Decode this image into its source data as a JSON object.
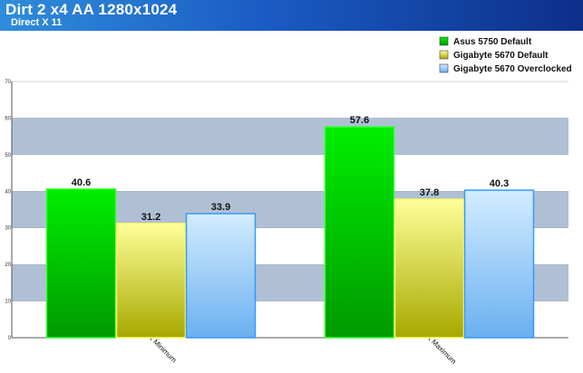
{
  "header": {
    "title": "Dirt 2 x4 AA 1280x1024",
    "subtitle": "Direct X 11"
  },
  "chart_data": {
    "type": "bar",
    "title": "Dirt 2 x4 AA 1280x1024",
    "subtitle": "Direct X 11",
    "xlabel": "",
    "ylabel": "",
    "categories": [
      "Minimum",
      "Maximum"
    ],
    "ylim": [
      0,
      70
    ],
    "yticks": [
      0,
      10,
      20,
      30,
      40,
      50,
      60,
      70
    ],
    "grid": true,
    "legend_position": "top-right",
    "series": [
      {
        "name": "Asus 5750 Default",
        "values": [
          40.6,
          57.6
        ],
        "labels": [
          "40.6",
          "57.6"
        ],
        "color_top": "#00ee00",
        "color_bottom": "#009900",
        "border": "#33ff33"
      },
      {
        "name": "Gigabyte 5670 Default",
        "values": [
          31.2,
          37.8
        ],
        "labels": [
          "31.2",
          "37.8"
        ],
        "color_top": "#ffff99",
        "color_bottom": "#a8a800",
        "border": "#ffff66"
      },
      {
        "name": "Gigabyte 5670 Overclocked",
        "values": [
          33.9,
          40.3
        ],
        "labels": [
          "33.9",
          "40.3"
        ],
        "color_top": "#d4ecff",
        "color_bottom": "#6ab0f0",
        "border": "#3399ff"
      }
    ]
  }
}
